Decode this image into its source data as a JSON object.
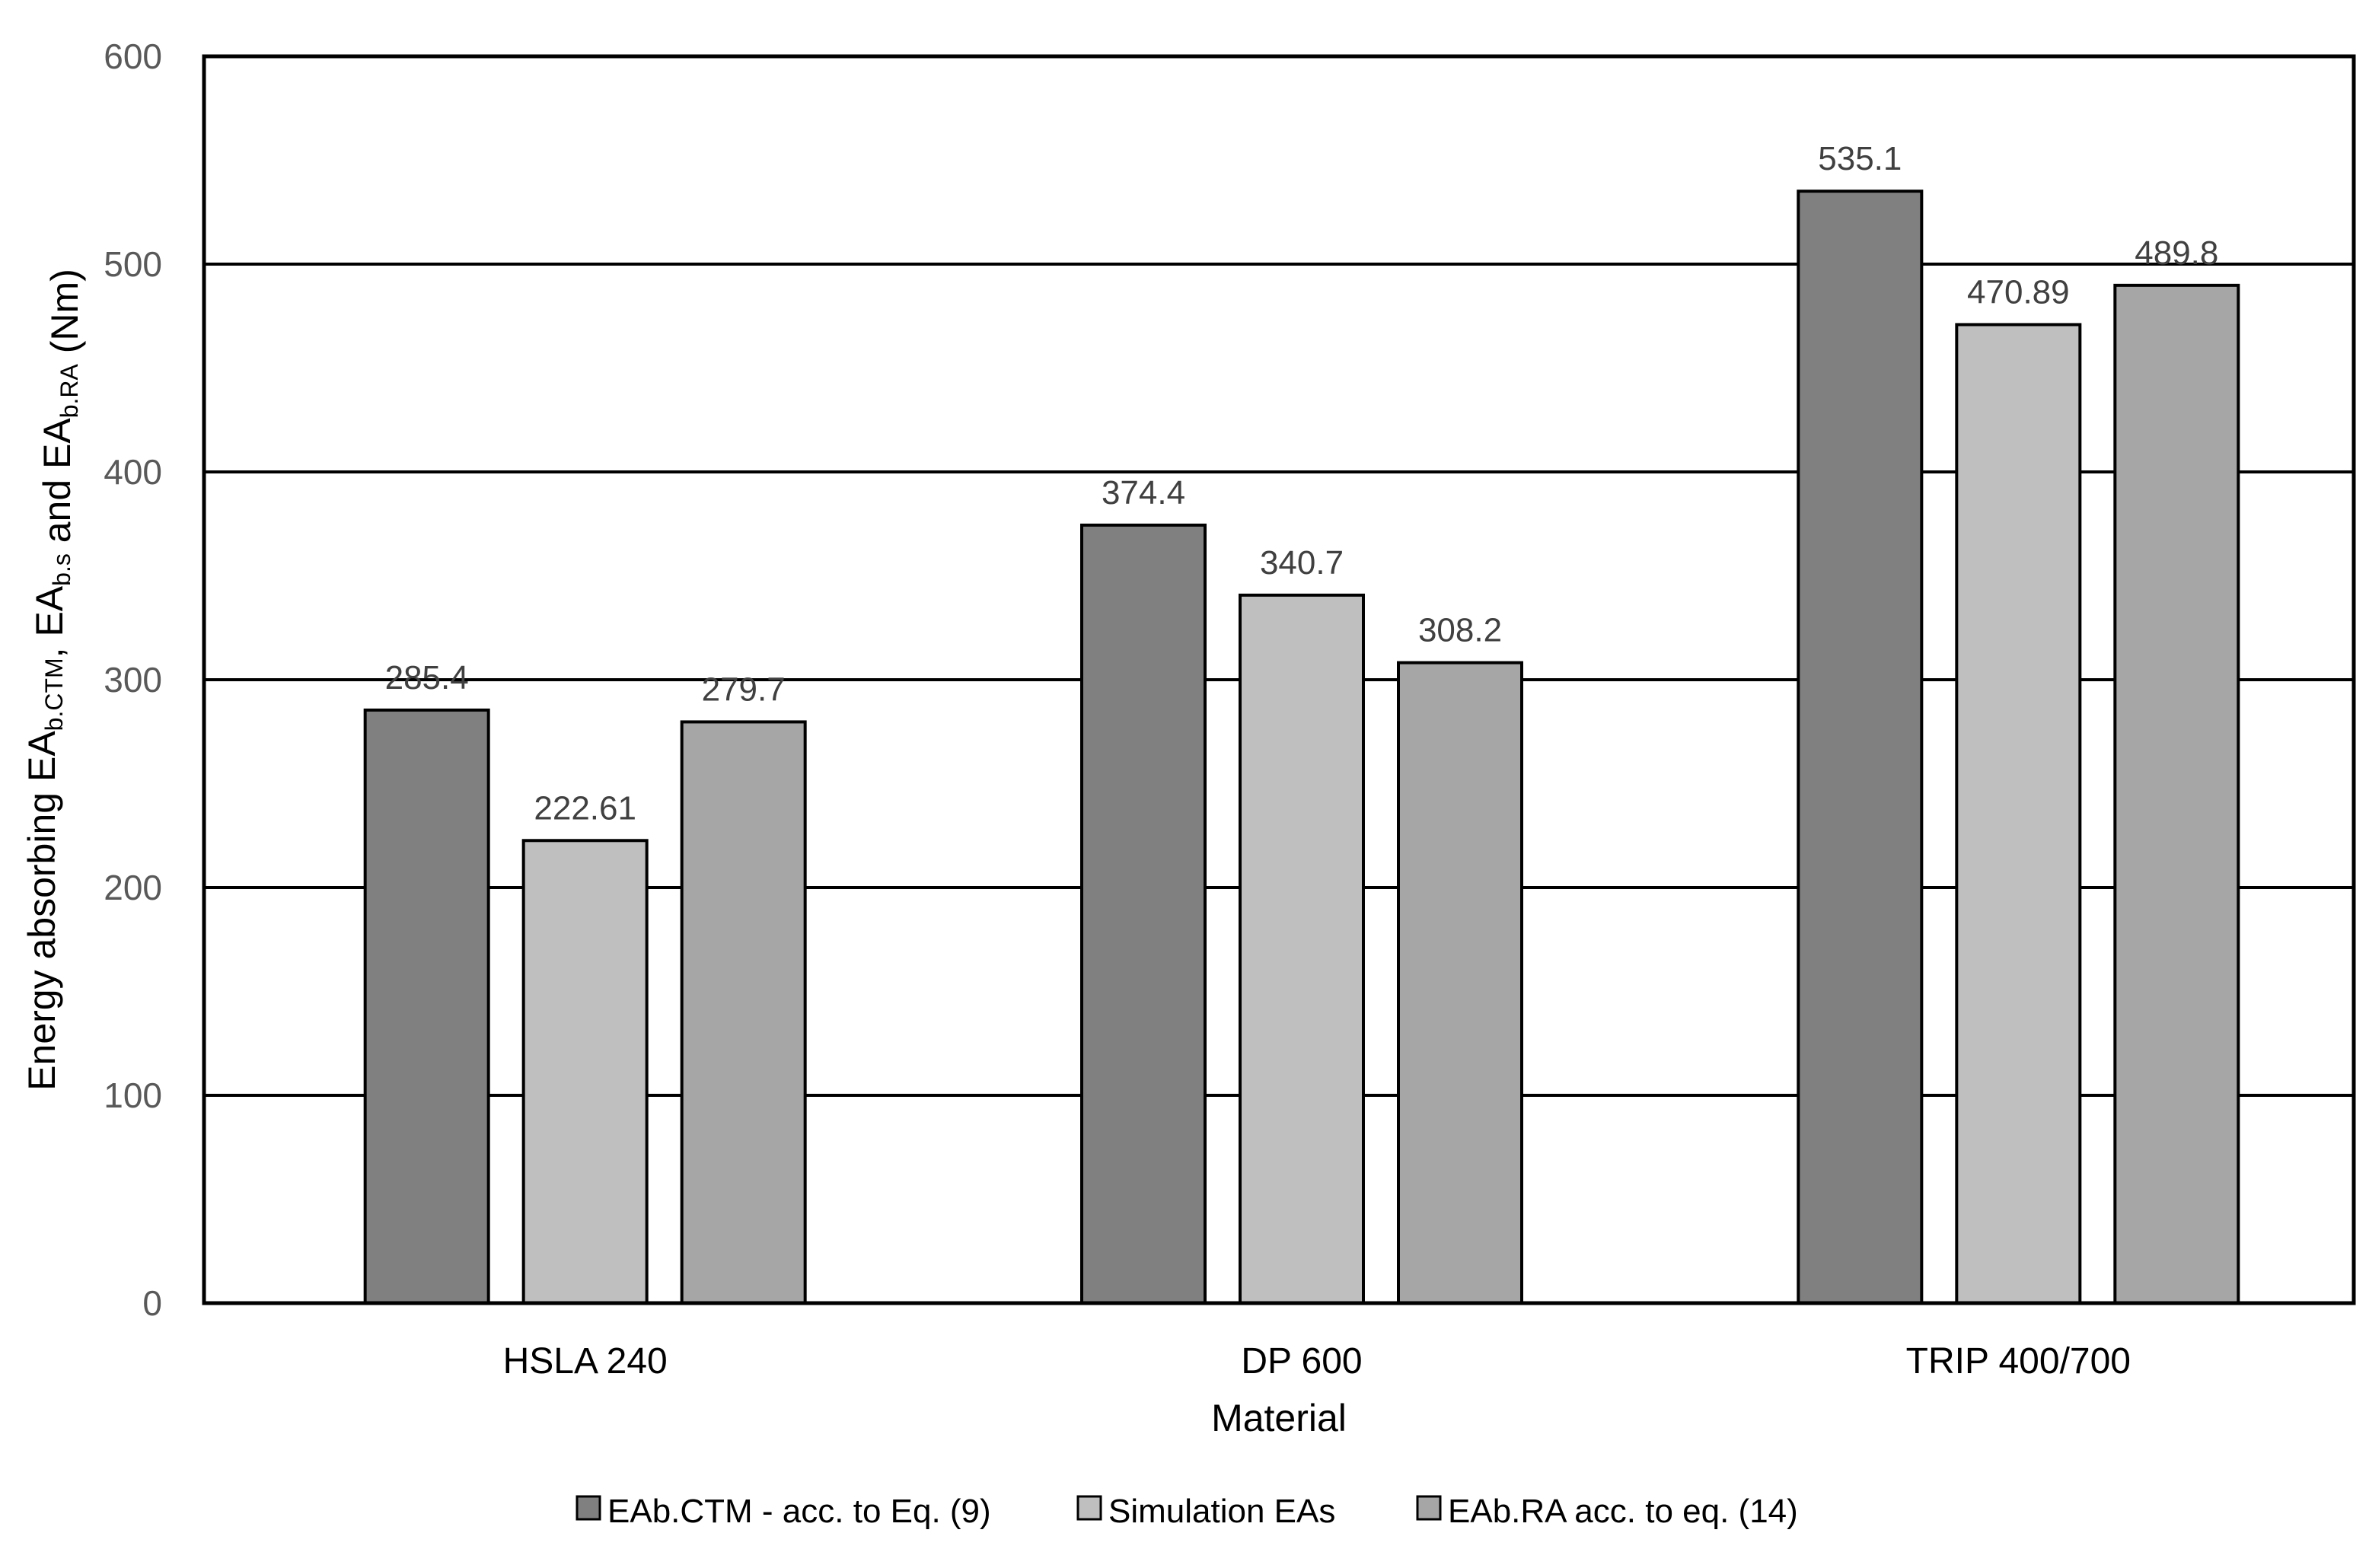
{
  "chart_data": {
    "type": "bar",
    "title": "",
    "xlabel": "Material",
    "ylabel": {
      "parts": [
        {
          "text": "Energy absorbing EA"
        },
        {
          "text": "b.CTM",
          "sub": true
        },
        {
          "text": ", EA"
        },
        {
          "text": "b.s",
          "sub": true
        },
        {
          "text": " and EA"
        },
        {
          "text": "b.RA",
          "sub": true
        },
        {
          "text": " (Nm)"
        }
      ]
    },
    "ylim": [
      0,
      600
    ],
    "yticks": [
      "0",
      "100",
      "200",
      "300",
      "400",
      "500",
      "600"
    ],
    "grid": true,
    "legend_position": "bottom",
    "categories": [
      "HSLA 240",
      "DP 600",
      "TRIP 400/700"
    ],
    "series": [
      {
        "name": "EAb.CTM - acc. to  Eq. (9)",
        "color": "#808080",
        "values": [
          285.4,
          374.4,
          535.1
        ],
        "labels": [
          "285.4",
          "374.4",
          "535.1"
        ]
      },
      {
        "name": "Simulation EAs",
        "color": "#bfbfbf",
        "values": [
          222.61,
          340.7,
          470.89
        ],
        "labels": [
          "222.61",
          "340.7",
          "470.89"
        ]
      },
      {
        "name": "EAb.RA acc.  to eq. (14)",
        "color": "#a6a6a6",
        "values": [
          279.7,
          308.2,
          489.8
        ],
        "labels": [
          "279.7",
          "308.2",
          "489.8"
        ]
      }
    ]
  }
}
